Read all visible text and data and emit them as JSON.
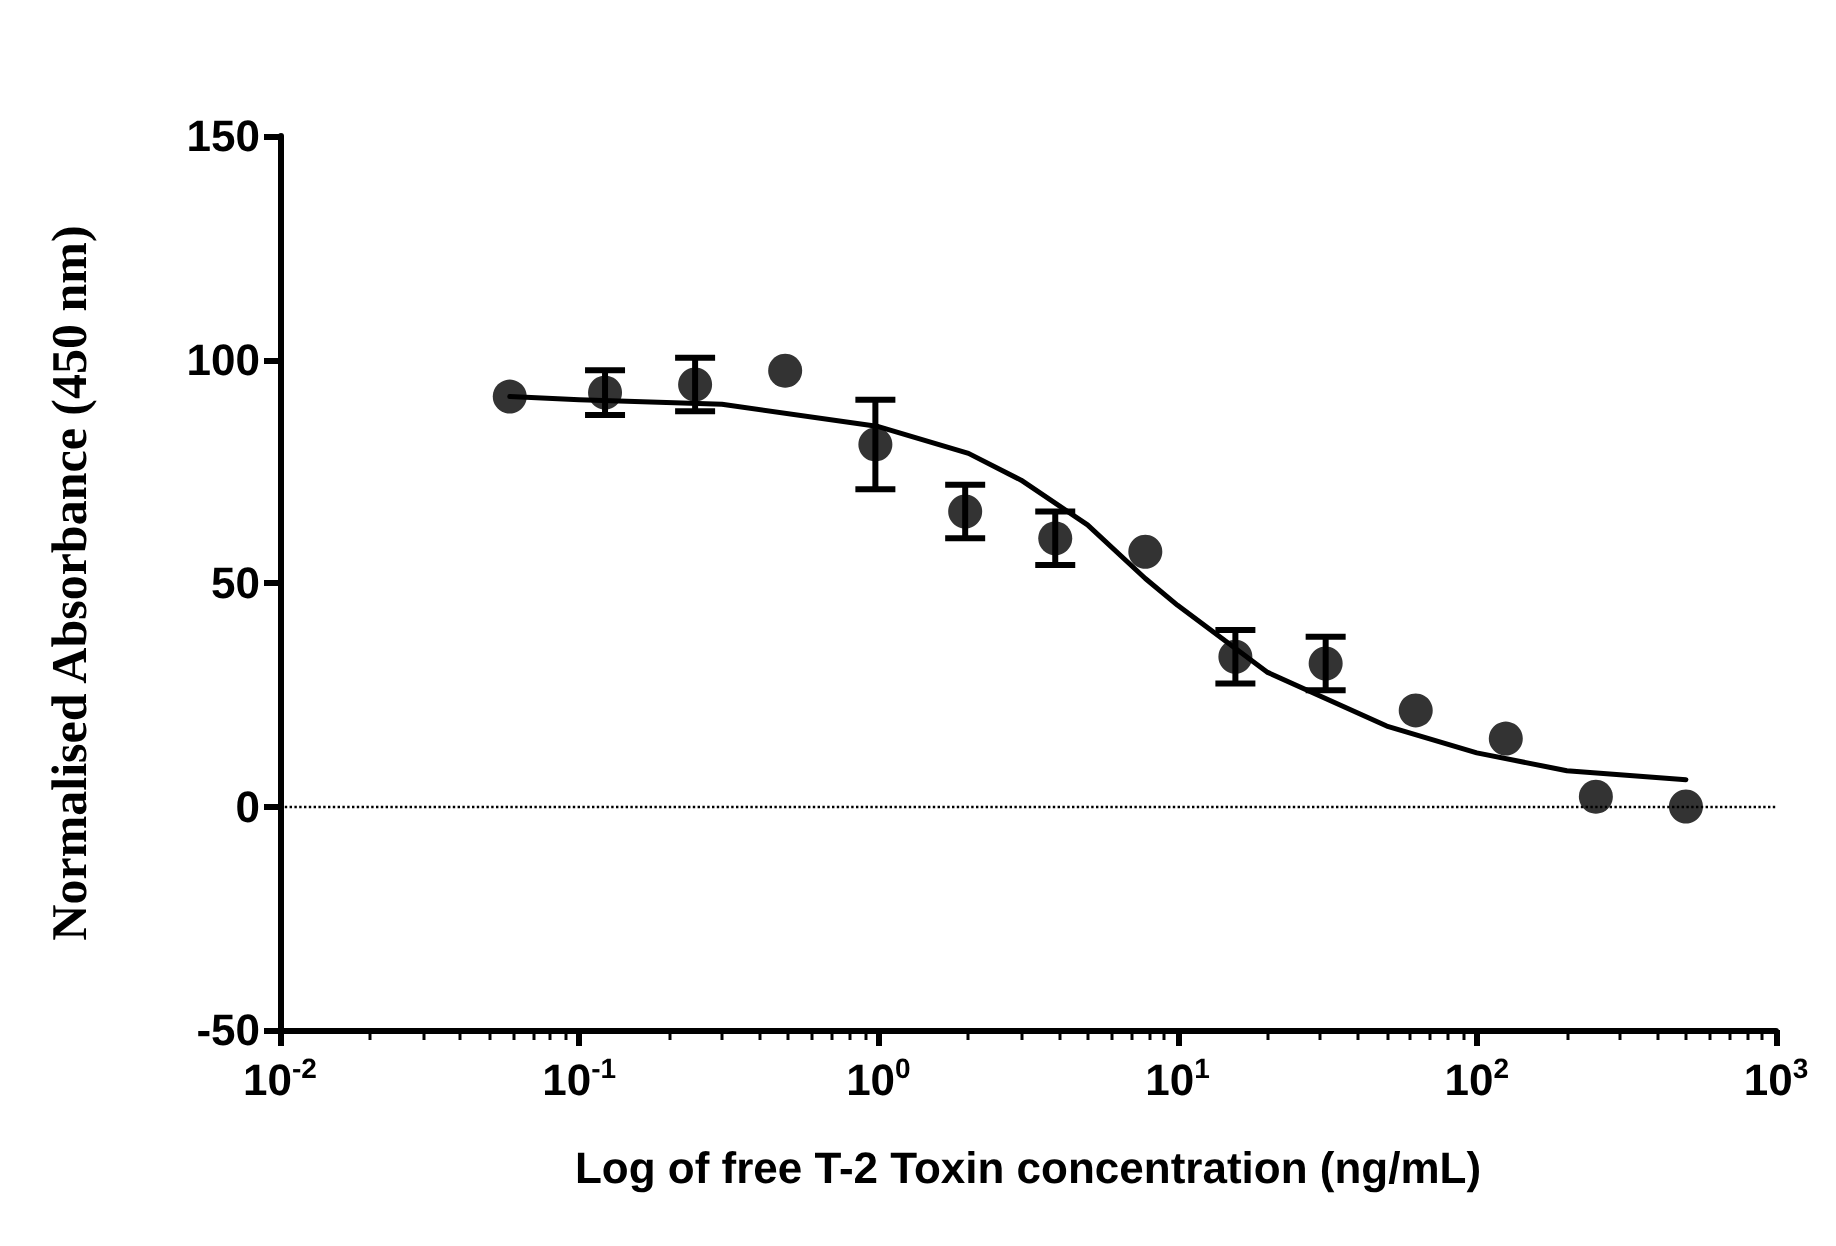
{
  "chart_data": {
    "type": "scatter",
    "xlabel": "Log of free T-2 Toxin concentration (ng/mL)",
    "ylabel": "Normalised Absorbance (450 nm)",
    "log": "x",
    "xlim": [
      0.01,
      1000
    ],
    "ylim": [
      -50,
      150
    ],
    "xticks": [
      {
        "value": 0.01,
        "label": "10$^{-2}$"
      },
      {
        "value": 0.1,
        "label": "10$^{-1}$"
      },
      {
        "value": 1,
        "label": "10$^{0}$"
      },
      {
        "value": 10,
        "label": "10$^{1}$"
      },
      {
        "value": 100,
        "label": "10$^{2}$"
      },
      {
        "value": 1000,
        "label": "10$^{3}$"
      }
    ],
    "yticks": [
      -50,
      0,
      50,
      100,
      150
    ],
    "grid": false,
    "marker": "circle",
    "ref_lines": [
      {
        "axis": "y",
        "value": 0,
        "line_style": "dotted",
        "color": "#000000"
      }
    ],
    "series": [
      {
        "color": "#000000",
        "x": [
          0.0586,
          0.122,
          0.244,
          0.488,
          0.977,
          1.95,
          3.9,
          7.8,
          15.6,
          31.25,
          62.5,
          125,
          250,
          500
        ],
        "values": [
          91.7,
          92.6,
          94.4,
          97.5,
          81,
          66,
          60,
          57,
          33.5,
          32,
          21.5,
          15.2,
          2.2,
          0
        ],
        "errors": [
          null,
          5,
          6,
          null,
          10,
          6,
          6,
          null,
          6,
          6,
          null,
          null,
          null,
          null
        ]
      },
      {
        "type": "line",
        "color": "#000000",
        "line_style": "solid",
        "marker": "none",
        "x": [
          0.0586,
          0.1,
          0.3,
          1,
          2,
          3,
          5,
          7.8,
          10,
          20,
          50,
          100,
          200,
          500
        ],
        "values": [
          91.7,
          91,
          90,
          85,
          79,
          73,
          63,
          51,
          45,
          30,
          18,
          12,
          8,
          6
        ]
      }
    ]
  }
}
